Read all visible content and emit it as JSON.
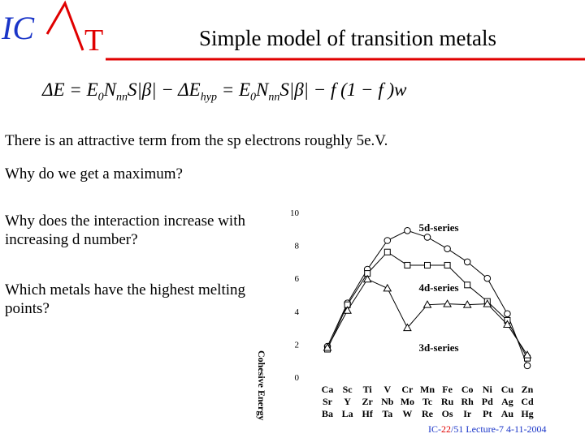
{
  "header": {
    "logo_left": "IC",
    "logo_right": "T",
    "title": "Simple model of transition metals"
  },
  "equation": [
    "ΔE = E",
    "0",
    "N",
    "nn",
    "S|β| − ΔE",
    "hyp",
    " = E",
    "0",
    "N",
    "nn",
    "S|β| − f (1 − f )w"
  ],
  "paragraphs": [
    "There is an attractive term from the sp electrons roughly 5e.V.",
    "Why do we get a maximum?",
    "Why does the interaction increase with increasing d number?",
    "Which metals have the highest melting points?"
  ],
  "chart_data": {
    "type": "line",
    "ylabel": "Cohesive Energy",
    "categories": [
      [
        "Ca",
        "Sr",
        "Ba"
      ],
      [
        "Sc",
        "Y",
        "La"
      ],
      [
        "Ti",
        "Zr",
        "Hf"
      ],
      [
        "V",
        "Nb",
        "Ta"
      ],
      [
        "Cr",
        "Mo",
        "W"
      ],
      [
        "Mn",
        "Tc",
        "Re"
      ],
      [
        "Fe",
        "Ru",
        "Os"
      ],
      [
        "Co",
        "Rh",
        "Ir"
      ],
      [
        "Ni",
        "Pd",
        "Pt"
      ],
      [
        "Cu",
        "Ag",
        "Au"
      ],
      [
        "Zn",
        "Cd",
        "Hg"
      ]
    ],
    "ylim": [
      0,
      10
    ],
    "yticks": [
      0,
      2,
      4,
      6,
      8,
      10
    ],
    "series": [
      {
        "name": "5d-series",
        "marker": "circle",
        "color": "#000000",
        "values": [
          1.87,
          4.5,
          6.55,
          8.3,
          8.9,
          8.5,
          7.8,
          7.0,
          6.0,
          3.85,
          0.7
        ]
      },
      {
        "name": "4d-series",
        "marker": "square",
        "color": "#000000",
        "values": [
          1.7,
          4.4,
          6.3,
          7.6,
          6.8,
          6.8,
          6.8,
          5.6,
          4.6,
          3.45,
          1.15
        ]
      },
      {
        "name": "3d-series",
        "marker": "triangle",
        "color": "#000000",
        "values": [
          1.8,
          4.05,
          5.95,
          5.4,
          3.0,
          4.4,
          4.45,
          4.4,
          4.45,
          3.2,
          1.35
        ]
      }
    ]
  },
  "footer": {
    "prefix": "IC-",
    "page": "22",
    "rest": "/51  Lecture-7 4-11-2004"
  }
}
